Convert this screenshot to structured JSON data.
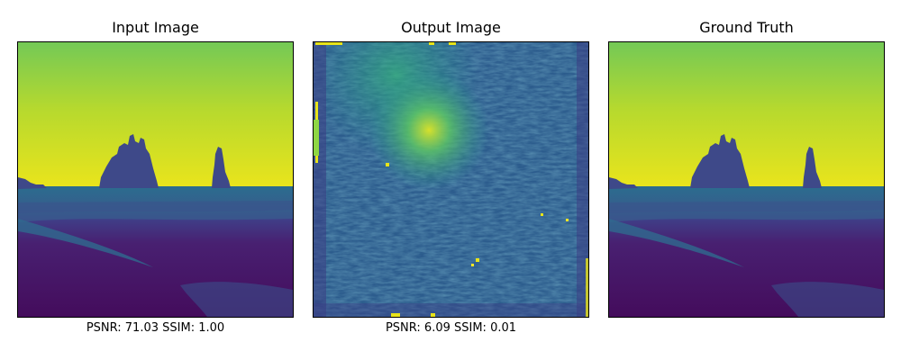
{
  "figure": {
    "panels": [
      {
        "title": "Input Image",
        "caption": "PSNR: 71.03 SSIM: 1.00",
        "image": "beach-sea-stacks-viridis"
      },
      {
        "title": "Output Image",
        "caption": "PSNR: 6.09 SSIM: 0.01",
        "image": "noisy-reconstruction-viridis"
      },
      {
        "title": "Ground Truth",
        "caption": "",
        "image": "beach-sea-stacks-viridis"
      }
    ],
    "colors": {
      "sky_top": "#74c956",
      "sky_horizon": "#e5e41a",
      "sea_stack": "#3c4d8a",
      "sea": "#2c6d8e",
      "sand": "#451a6c",
      "noise_base": "#2b5b8d",
      "noise_bright": "#d6e02c"
    }
  }
}
